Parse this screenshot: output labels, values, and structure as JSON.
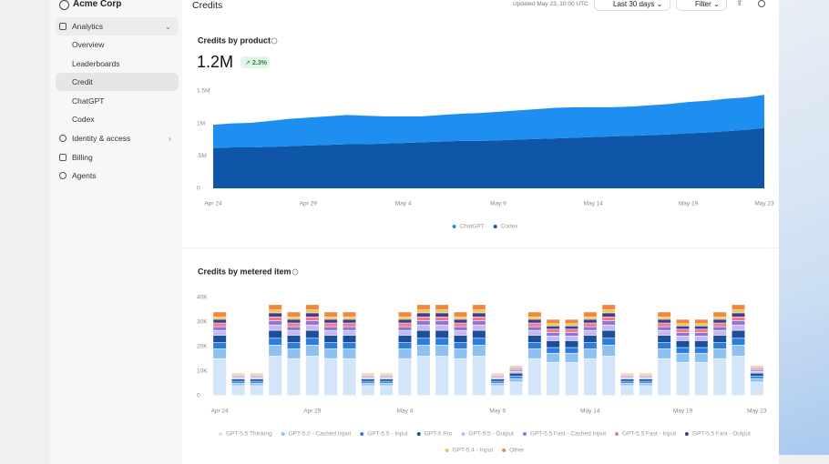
{
  "sidebar": {
    "org": "Acme Corp",
    "items": [
      "Analytics",
      "Overview",
      "Leaderboards",
      "Credit",
      "ChatGPT",
      "Codex",
      "Identity & access",
      "Billing",
      "Agents"
    ]
  },
  "header": {
    "title": "Credits",
    "updated": "Updated May 23, 10:00 UTC",
    "range": "Last 30 days",
    "filter": "Filter"
  },
  "chart_data": [
    {
      "type": "area",
      "title": "Credits by product",
      "headline": "1.2M",
      "change": "2.3%",
      "stacked": true,
      "categories": [
        "Apr 24",
        null,
        null,
        null,
        null,
        "Apr 29",
        null,
        null,
        null,
        null,
        "May 4",
        null,
        null,
        null,
        null,
        "May 9",
        null,
        null,
        null,
        null,
        "May 14",
        null,
        null,
        null,
        null,
        "May 19",
        null,
        null,
        null,
        "May 23"
      ],
      "ylim": [
        0,
        1.5
      ],
      "yticks": [
        0,
        {
          "value": 0.5,
          "label": ".5M"
        },
        {
          "value": 1,
          "label": "1M"
        },
        {
          "value": 1.5,
          "label": "1.5M"
        }
      ],
      "series": [
        {
          "name": "ChatGPT",
          "color": "#1e8ef0",
          "values": [
            0.36,
            0.37,
            0.38,
            0.4,
            0.42,
            0.43,
            0.44,
            0.45,
            0.44,
            0.42,
            0.41,
            0.4,
            0.41,
            0.42,
            0.43,
            0.44,
            0.45,
            0.46,
            0.47,
            0.47,
            0.46,
            0.45,
            0.45,
            0.46,
            0.47,
            0.48,
            0.49,
            0.5,
            0.5,
            0.51
          ]
        },
        {
          "name": "Codex",
          "color": "#0f56a8",
          "values": [
            0.62,
            0.63,
            0.63,
            0.64,
            0.65,
            0.66,
            0.67,
            0.68,
            0.68,
            0.69,
            0.7,
            0.71,
            0.72,
            0.73,
            0.73,
            0.74,
            0.75,
            0.76,
            0.77,
            0.78,
            0.79,
            0.8,
            0.81,
            0.82,
            0.83,
            0.85,
            0.86,
            0.88,
            0.9,
            0.93
          ]
        }
      ]
    },
    {
      "type": "bar",
      "title": "Credits by metered item",
      "stacked": true,
      "categories": [
        "Apr 24",
        null,
        null,
        null,
        null,
        "Apr 29",
        null,
        null,
        null,
        null,
        "May 4",
        null,
        null,
        null,
        null,
        "May 9",
        null,
        null,
        null,
        null,
        "May 14",
        null,
        null,
        null,
        null,
        "May 19",
        null,
        null,
        null,
        "May 23"
      ],
      "ylim": [
        0,
        40
      ],
      "yticks": [
        0,
        {
          "value": 10,
          "label": "10K"
        },
        {
          "value": 20,
          "label": "20K"
        },
        {
          "value": 30,
          "label": "30K"
        },
        {
          "value": 40,
          "label": "40K"
        }
      ],
      "series": [
        {
          "name": "GPT-5.5 Thinking",
          "color": "#d3e5f9",
          "values": [
            15,
            4,
            4,
            16,
            15,
            16,
            15,
            15,
            4,
            4,
            15,
            16,
            16,
            15,
            16,
            4,
            5.5,
            15,
            13.5,
            13.5,
            15,
            16,
            4,
            4,
            15,
            13.5,
            13.5,
            15,
            16,
            5.5
          ]
        },
        {
          "name": "GPT-5.0 - Cached Input",
          "color": "#8ec0f0",
          "values": [
            4,
            1,
            1,
            4.5,
            4,
            4.5,
            4,
            4,
            1,
            1,
            4,
            4.5,
            4.5,
            4,
            4.5,
            1,
            1.4,
            4,
            3.7,
            3.7,
            4,
            4.5,
            1,
            1,
            4,
            3.7,
            3.7,
            4,
            4.5,
            1.4
          ]
        },
        {
          "name": "GPT-5.5 - Input",
          "color": "#2b7de0",
          "values": [
            2.5,
            0.8,
            0.8,
            2.8,
            2.5,
            2.8,
            2.5,
            2.5,
            0.8,
            0.8,
            2.5,
            2.8,
            2.8,
            2.5,
            2.8,
            0.8,
            1,
            2.5,
            2.3,
            2.3,
            2.5,
            2.8,
            0.8,
            0.8,
            2.5,
            2.3,
            2.3,
            2.5,
            2.8,
            1
          ]
        },
        {
          "name": "GPT-5 Pro",
          "color": "#1a4f9c",
          "values": [
            3,
            0.9,
            0.9,
            3.2,
            3,
            3.2,
            3,
            3,
            0.9,
            0.9,
            3,
            3.2,
            3.2,
            3,
            3.2,
            0.9,
            1.2,
            3,
            2.8,
            2.8,
            3,
            3.2,
            0.9,
            0.9,
            3,
            2.8,
            2.8,
            3,
            3.2,
            1.2
          ]
        },
        {
          "name": "GPT-5.5 - Output",
          "color": "#c9b8f0",
          "values": [
            2,
            0.5,
            0.5,
            2.2,
            2,
            2.2,
            2,
            2,
            0.5,
            0.5,
            2,
            2.2,
            2.2,
            2,
            2.2,
            0.5,
            0.7,
            2,
            1.9,
            1.9,
            2,
            2.2,
            0.5,
            0.5,
            2,
            1.9,
            1.9,
            2,
            2.2,
            0.7
          ]
        },
        {
          "name": "GPT-5.5 Fast - Cached Input",
          "color": "#8a76d8",
          "values": [
            1.5,
            0.4,
            0.4,
            1.7,
            1.5,
            1.7,
            1.5,
            1.5,
            0.4,
            0.4,
            1.5,
            1.7,
            1.7,
            1.5,
            1.7,
            0.4,
            0.5,
            1.5,
            1.4,
            1.4,
            1.5,
            1.7,
            0.4,
            0.4,
            1.5,
            1.4,
            1.4,
            1.5,
            1.7,
            0.5
          ]
        },
        {
          "name": "GPT-5.5 Fast - Input",
          "color": "#f07a8a",
          "values": [
            1.5,
            0.4,
            0.4,
            1.6,
            1.5,
            1.6,
            1.5,
            1.5,
            0.4,
            0.4,
            1.5,
            1.6,
            1.6,
            1.5,
            1.6,
            0.4,
            0.5,
            1.5,
            1.4,
            1.4,
            1.5,
            1.6,
            0.4,
            0.4,
            1.5,
            1.4,
            1.4,
            1.5,
            1.6,
            0.5
          ]
        },
        {
          "name": "GPT-5.5 Fast - Output",
          "color": "#3b3f8f",
          "values": [
            1.5,
            0.3,
            0.3,
            1.6,
            1.5,
            1.6,
            1.5,
            1.5,
            0.3,
            0.3,
            1.5,
            1.6,
            1.6,
            1.5,
            1.6,
            0.3,
            0.4,
            1.5,
            1.3,
            1.3,
            1.5,
            1.6,
            0.3,
            0.3,
            1.5,
            1.3,
            1.3,
            1.5,
            1.6,
            0.4
          ]
        },
        {
          "name": "GPT-5.4 - Input",
          "color": "#f5c451",
          "values": [
            1,
            0.3,
            0.3,
            1.2,
            1,
            1.2,
            1,
            1,
            0.3,
            0.3,
            1,
            1.2,
            1.2,
            1,
            1.2,
            0.3,
            0.3,
            1,
            0.9,
            0.9,
            1,
            1.2,
            0.3,
            0.3,
            1,
            0.9,
            0.9,
            1,
            1.2,
            0.3
          ]
        },
        {
          "name": "Other",
          "color": "#ef8a3c",
          "values": [
            2,
            0.4,
            0.4,
            2.2,
            2,
            2.2,
            2,
            2,
            0.4,
            0.4,
            2,
            2.2,
            2.2,
            2,
            2.2,
            0.4,
            0.5,
            2,
            1.8,
            1.8,
            2,
            2.2,
            0.4,
            0.4,
            2,
            1.8,
            1.8,
            2,
            2.2,
            0.5
          ]
        }
      ]
    }
  ]
}
